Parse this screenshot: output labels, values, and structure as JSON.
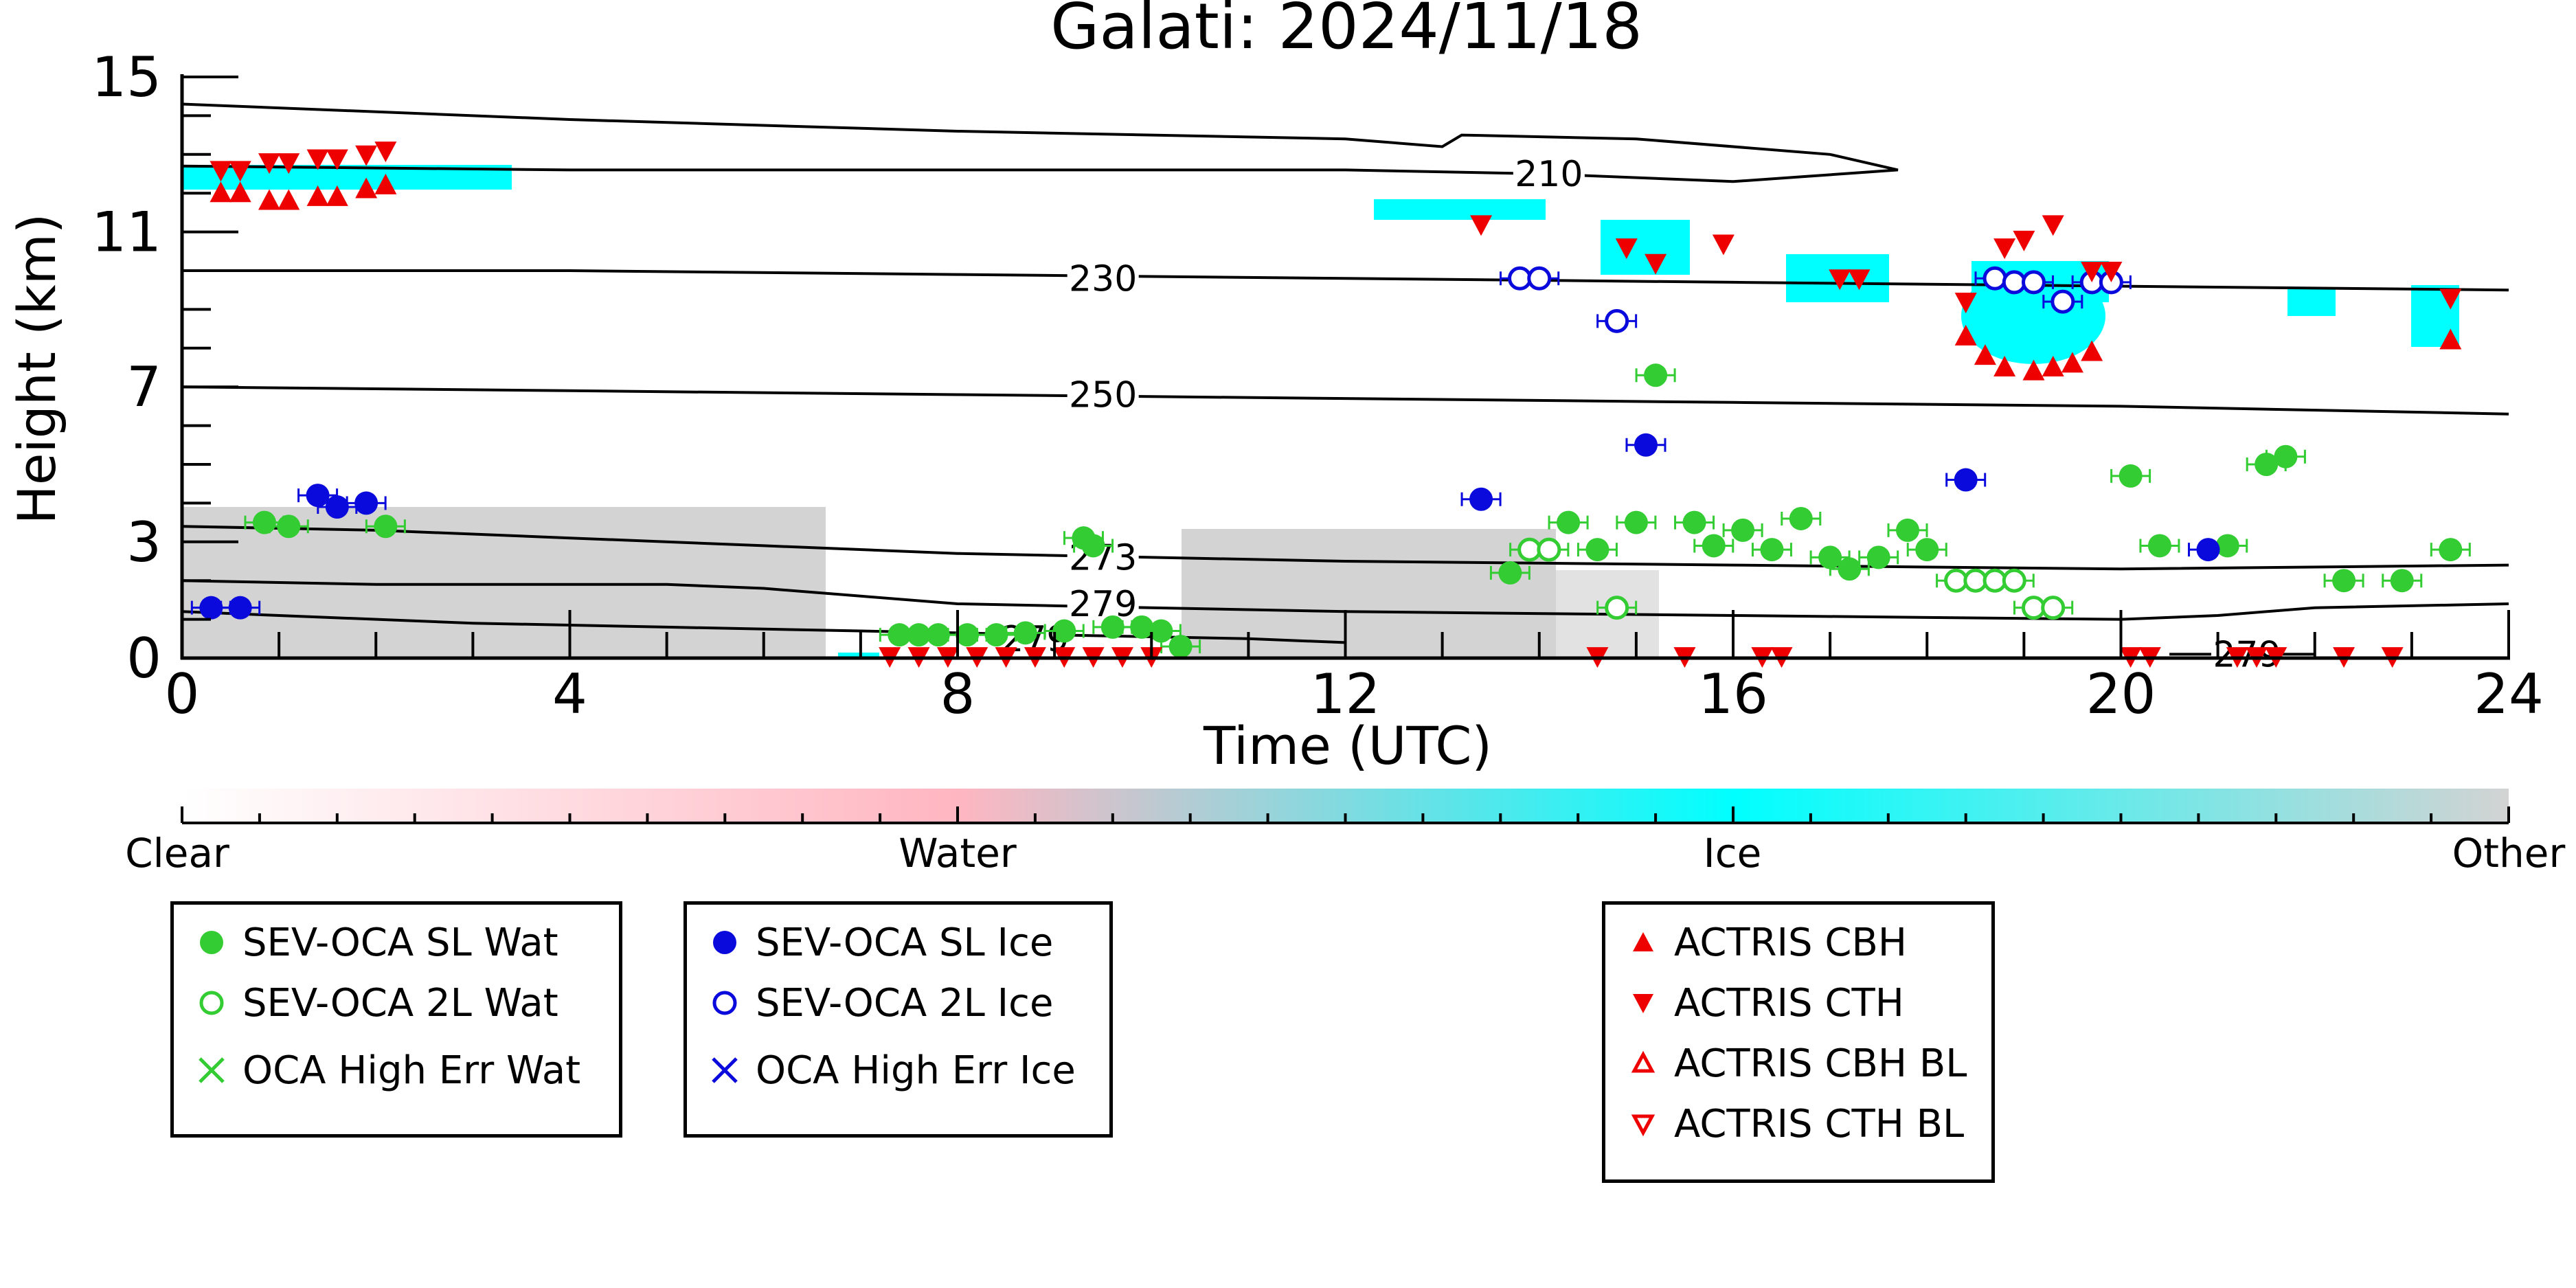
{
  "chart_data": {
    "type": "scatter",
    "title": "Galati: 2024/11/18",
    "xlabel": "Time (UTC)",
    "ylabel": "Height (km)",
    "xlim": [
      0,
      24
    ],
    "ylim": [
      0,
      15
    ],
    "xticks": [
      "0",
      "4",
      "8",
      "12",
      "16",
      "20",
      "24"
    ],
    "yticks": [
      "0",
      "3",
      "7",
      "11",
      "15"
    ],
    "colorbar": {
      "labels": [
        "Clear",
        "Water",
        "Ice",
        "Other"
      ],
      "colors": [
        "#ffffff",
        "#ffb6c1",
        "#00ffff",
        "#d3d3d3"
      ]
    },
    "isotherms": [
      {
        "label": "210",
        "label_x": 14.1,
        "label_y": 12.5,
        "points": [
          [
            0,
            14.3
          ],
          [
            4,
            13.9
          ],
          [
            8,
            13.6
          ],
          [
            12,
            13.4
          ],
          [
            13.0,
            13.2
          ],
          [
            13.2,
            13.5
          ],
          [
            15,
            13.4
          ],
          [
            17,
            13.0
          ],
          [
            17.7,
            12.6
          ],
          [
            16,
            12.3
          ],
          [
            14,
            12.5
          ],
          [
            12,
            12.6
          ],
          [
            8,
            12.6
          ],
          [
            4,
            12.6
          ],
          [
            0,
            12.7
          ]
        ]
      },
      {
        "label": "230",
        "label_x": 9.5,
        "label_y": 9.8,
        "points": [
          [
            0,
            10.0
          ],
          [
            4,
            10.0
          ],
          [
            8,
            9.9
          ],
          [
            12,
            9.8
          ],
          [
            16,
            9.7
          ],
          [
            20,
            9.6
          ],
          [
            24,
            9.5
          ]
        ]
      },
      {
        "label": "250",
        "label_x": 9.5,
        "label_y": 6.8,
        "points": [
          [
            0,
            7.0
          ],
          [
            4,
            6.9
          ],
          [
            8,
            6.8
          ],
          [
            12,
            6.7
          ],
          [
            16,
            6.6
          ],
          [
            20,
            6.5
          ],
          [
            24,
            6.3
          ]
        ]
      },
      {
        "label": "273",
        "label_x": 9.5,
        "label_y": 2.6,
        "points": [
          [
            0,
            3.4
          ],
          [
            2,
            3.3
          ],
          [
            4,
            3.1
          ],
          [
            6,
            2.9
          ],
          [
            8,
            2.7
          ],
          [
            10,
            2.6
          ],
          [
            12,
            2.5
          ],
          [
            16,
            2.4
          ],
          [
            20,
            2.3
          ],
          [
            24,
            2.4
          ]
        ]
      },
      {
        "label": "279",
        "label_x": 9.5,
        "label_y": 1.4,
        "points": [
          [
            0,
            2.0
          ],
          [
            2,
            1.9
          ],
          [
            4,
            1.9
          ],
          [
            5,
            1.9
          ],
          [
            6,
            1.8
          ],
          [
            7,
            1.6
          ],
          [
            8,
            1.4
          ],
          [
            10,
            1.3
          ],
          [
            12,
            1.2
          ],
          [
            16,
            1.1
          ],
          [
            20,
            1.0
          ],
          [
            21,
            1.1
          ],
          [
            22,
            1.3
          ],
          [
            24,
            1.4
          ]
        ]
      },
      {
        "label": "279",
        "label_x": 8.8,
        "label_y": 0.5,
        "points": [
          [
            0,
            1.2
          ],
          [
            1,
            1.1
          ],
          [
            3,
            0.9
          ],
          [
            5,
            0.8
          ],
          [
            7,
            0.7
          ],
          [
            9,
            0.6
          ],
          [
            11,
            0.5
          ],
          [
            12,
            0.4
          ]
        ]
      },
      {
        "label": "279",
        "label_x": 21.3,
        "label_y": 0.1,
        "points": [
          [
            20.5,
            0.1
          ],
          [
            22,
            0.1
          ]
        ]
      }
    ],
    "series": [
      {
        "name": "SEV-OCA SL Wat",
        "color": "#33cc33",
        "marker": "circle-filled",
        "x": [
          0.85,
          1.1,
          2.1,
          7.4,
          7.6,
          7.8,
          8.1,
          8.4,
          8.7,
          9.1,
          9.3,
          9.4,
          9.6,
          9.9,
          10.1,
          10.3,
          13.7,
          14.6,
          14.3,
          15.0,
          15.2,
          15.6,
          15.8,
          16.1,
          16.4,
          16.7,
          17.0,
          17.2,
          17.5,
          17.8,
          18.0,
          20.1,
          20.4,
          21.1,
          21.5,
          21.7,
          22.3,
          22.9,
          23.4
        ],
        "y": [
          3.5,
          3.4,
          3.4,
          0.6,
          0.6,
          0.6,
          0.6,
          0.6,
          0.65,
          0.7,
          3.1,
          2.9,
          0.8,
          0.8,
          0.7,
          0.3,
          2.2,
          2.8,
          3.5,
          3.5,
          7.3,
          3.5,
          2.9,
          3.3,
          2.8,
          3.6,
          2.6,
          2.3,
          2.6,
          3.3,
          2.8,
          4.7,
          2.9,
          2.9,
          5.0,
          5.2,
          2.0,
          2.0,
          2.8
        ]
      },
      {
        "name": "SEV-OCA 2L Wat",
        "color": "#33cc33",
        "marker": "circle-open",
        "x": [
          13.9,
          14.1,
          14.8,
          18.3,
          18.5,
          18.7,
          18.9,
          19.1,
          19.3
        ],
        "y": [
          2.8,
          2.8,
          1.3,
          2.0,
          2.0,
          2.0,
          2.0,
          1.3,
          1.3
        ]
      },
      {
        "name": "OCA High Err Wat",
        "color": "#33cc33",
        "marker": "x",
        "x": [],
        "y": []
      },
      {
        "name": "SEV-OCA SL Ice",
        "color": "#0a0adc",
        "marker": "circle-filled",
        "x": [
          0.3,
          0.6,
          1.4,
          1.6,
          1.9,
          13.4,
          15.1,
          18.4,
          20.9
        ],
        "y": [
          1.3,
          1.3,
          4.2,
          3.9,
          4.0,
          4.1,
          5.5,
          4.6,
          2.8
        ]
      },
      {
        "name": "SEV-OCA 2L Ice",
        "color": "#0a0adc",
        "marker": "circle-open",
        "x": [
          13.8,
          14.0,
          14.8,
          18.7,
          18.9,
          19.1,
          19.4,
          19.7,
          19.9
        ],
        "y": [
          9.8,
          9.8,
          8.7,
          9.8,
          9.7,
          9.7,
          9.2,
          9.7,
          9.7
        ]
      },
      {
        "name": "OCA High Err Ice",
        "color": "#0a0adc",
        "marker": "x",
        "x": [],
        "y": []
      },
      {
        "name": "ACTRIS CBH",
        "color": "#ee0000",
        "marker": "triangle-up",
        "x": [
          0.4,
          0.6,
          0.9,
          1.1,
          1.4,
          1.6,
          1.9,
          2.1,
          18.4,
          18.6,
          18.8,
          19.1,
          19.3,
          19.5,
          19.7,
          23.4
        ],
        "y": [
          12.0,
          12.0,
          11.8,
          11.8,
          11.9,
          11.9,
          12.1,
          12.2,
          8.3,
          7.8,
          7.5,
          7.4,
          7.5,
          7.6,
          7.9,
          8.2
        ]
      },
      {
        "name": "ACTRIS CTH",
        "color": "#ee0000",
        "marker": "triangle-down",
        "x": [
          0.4,
          0.6,
          0.9,
          1.1,
          1.4,
          1.6,
          1.9,
          2.1,
          13.4,
          14.9,
          15.2,
          15.9,
          17.1,
          17.3,
          18.4,
          18.8,
          19.0,
          19.3,
          19.7,
          19.9,
          23.4,
          7.3,
          7.6,
          7.9,
          8.2,
          8.5,
          8.8,
          9.1,
          9.4,
          9.7,
          10.0,
          14.6,
          15.5,
          16.3,
          16.5,
          20.1,
          20.3,
          21.2,
          21.4,
          21.6,
          22.3,
          22.8
        ],
        "y": [
          12.6,
          12.6,
          12.8,
          12.8,
          12.9,
          12.9,
          13.0,
          13.1,
          11.2,
          10.6,
          10.2,
          10.7,
          9.8,
          9.8,
          9.2,
          10.6,
          10.8,
          11.2,
          10.0,
          10.0,
          9.3,
          0.05,
          0.05,
          0.05,
          0.05,
          0.05,
          0.05,
          0.05,
          0.05,
          0.05,
          0.05,
          0.05,
          0.05,
          0.05,
          0.05,
          0.05,
          0.05,
          0.05,
          0.05,
          0.05,
          0.05,
          0.05
        ]
      },
      {
        "name": "ACTRIS CBH BL",
        "color": "#ee0000",
        "marker": "triangle-up-open",
        "x": [],
        "y": []
      },
      {
        "name": "ACTRIS CTH BL",
        "color": "#ee0000",
        "marker": "triangle-down-open",
        "x": [],
        "y": []
      }
    ],
    "legend": {
      "groups": [
        [
          "SEV-OCA SL Wat",
          "SEV-OCA 2L Wat",
          "OCA High Err Wat"
        ],
        [
          "SEV-OCA SL Ice",
          "SEV-OCA 2L Ice",
          "OCA High Err Ice"
        ],
        [
          "ACTRIS CBH",
          "ACTRIS CTH",
          "ACTRIS CBH BL",
          "ACTRIS CTH BL"
        ]
      ],
      "placement": "bottom"
    }
  }
}
